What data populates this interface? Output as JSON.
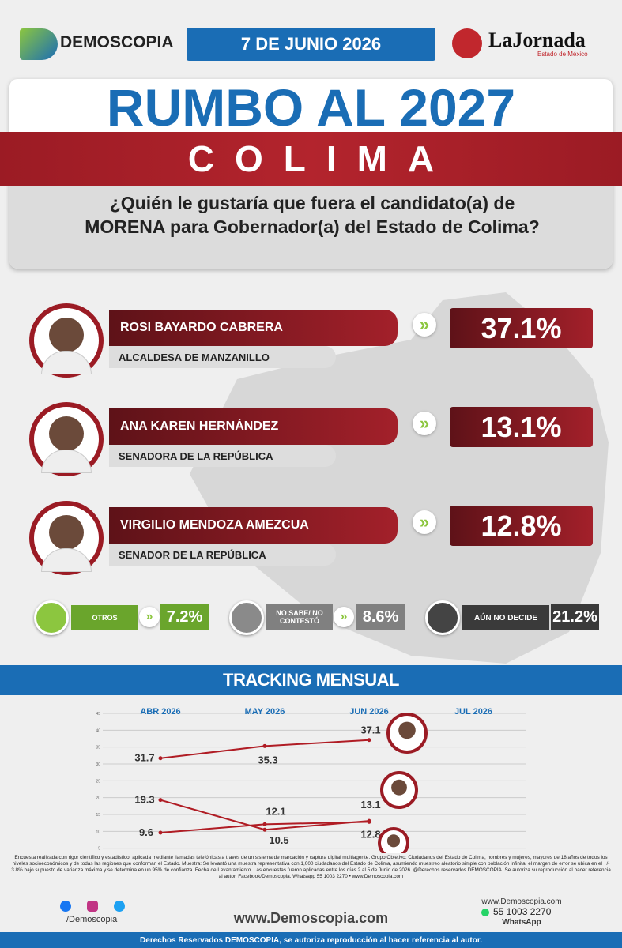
{
  "header": {
    "brand": "DEMOSCOPIA",
    "date": "7 DE JUNIO 2026",
    "partner": "LaJornada",
    "partner_sub": "Estado de México"
  },
  "title": "RUMBO AL 2027",
  "state": "COLIMA",
  "question": "¿Quién le gustaría que fuera el candidato(a) de MORENA para Gobernador(a) del Estado de Colima?",
  "candidates": [
    {
      "name": "ROSI BAYARDO CABRERA",
      "role": "ALCALDESA DE MANZANILLO",
      "result": "37.1%"
    },
    {
      "name": "ANA KAREN HERNÁNDEZ",
      "role": "SENADORA DE LA REPÚBLICA",
      "result": "13.1%"
    },
    {
      "name": "VIRGILIO MENDOZA AMEZCUA",
      "role": "SENADOR DE LA REPÚBLICA",
      "result": "12.8%"
    }
  ],
  "others": [
    {
      "label": "OTROS",
      "result": "7.2%"
    },
    {
      "label": "NO SABE/ NO CONTESTÓ",
      "result": "8.6%"
    },
    {
      "label": "AÚN NO DECIDE",
      "result": "21.2%"
    }
  ],
  "chart_data": {
    "type": "line",
    "title": "TRACKING MENSUAL",
    "categories": [
      "ABR 2026",
      "MAY 2026",
      "JUN 2026",
      "JUL 2026"
    ],
    "series": [
      {
        "color": "#b01c24",
        "values": [
          31.7,
          35.3,
          37.1,
          null
        ]
      },
      {
        "color": "#b01c24",
        "values": [
          19.3,
          10.5,
          13.1,
          null
        ]
      },
      {
        "color": "#b01c24",
        "values": [
          9.6,
          12.1,
          12.8,
          null
        ]
      }
    ],
    "ylim": [
      0,
      45
    ],
    "yticks": [
      5,
      10,
      15,
      20,
      25,
      30,
      35,
      40,
      45
    ],
    "grid": true
  },
  "footer": {
    "methodology": "Encuesta realizada con rigor científico y estadístico, aplicada mediante llamadas telefónicas a través de un sistema de marcación y captura digital multiagente. Grupo Objetivo: Ciudadanos del Estado de Colima, hombres y mujeres, mayores de 18 años de todos los niveles socioeconómicos y de todas las regiones que conforman el Estado. Muestra: Se levantó una muestra representativa con 1,000 ciudadanos del Estado de Colima, asumiendo muestreo aleatorio simple con población infinita, el margen de error se ubica en el +/- 3.8% bajo supuesto de varianza máxima y se determina en un 95% de confianza. Fecha de Levantamiento. Las encuestas fueron aplicadas entre los días 2 al 5 de Junio de 2026. @Derechos reservados DEMOSCOPIA. Se autoriza su reproducción al hacer referencia al autor, Facebook/Demoscopia, Whatsapp 55 1003 2270 • www.Demoscopia.com",
    "social": "/Demoscopia",
    "website": "www.Demoscopia.com",
    "site_small": "www.Demoscopia.com",
    "phone": "55 1003 2270",
    "phone_label": "WhatsApp",
    "rights": "Derechos Reservados DEMOSCOPIA, se autoriza reproducción al hacer referencia al autor."
  }
}
